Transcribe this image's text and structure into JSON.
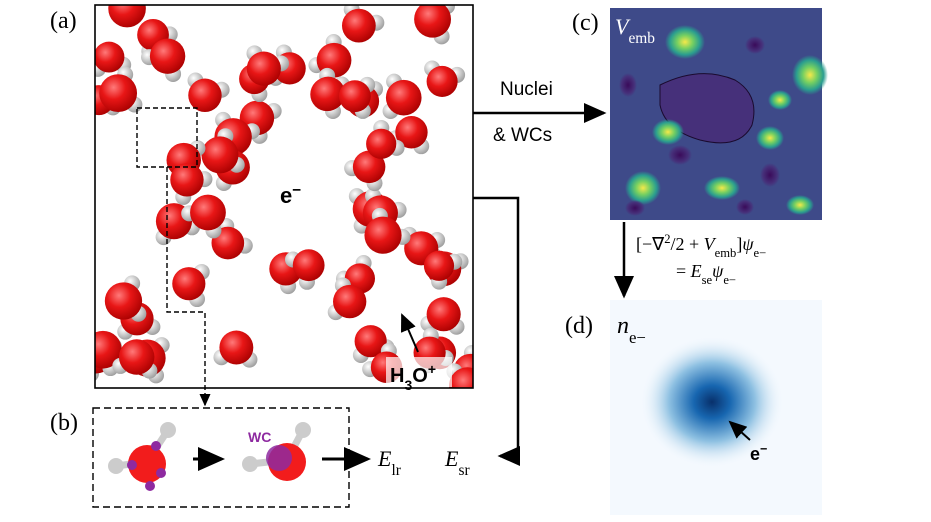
{
  "panels": {
    "a": {
      "label": "(a)",
      "electron": [
        {
          "t": "e"
        },
        {
          "t": "−",
          "s": "sup"
        }
      ],
      "ion": [
        {
          "t": "H"
        },
        {
          "t": "3",
          "s": "sub"
        },
        {
          "t": "O"
        },
        {
          "t": "+",
          "s": "sup"
        }
      ]
    },
    "b": {
      "label": "(b)",
      "wc": "WC",
      "energy": [
        {
          "t": "E",
          "s": "i"
        },
        {
          "t": "lr",
          "s": "sub"
        }
      ]
    },
    "c": {
      "label": "(c)",
      "quantity": [
        {
          "t": "V",
          "s": "i"
        },
        {
          "t": "emb",
          "s": "sub"
        }
      ]
    },
    "d": {
      "label": "(d)",
      "quantity": [
        {
          "t": "n",
          "s": "i"
        },
        {
          "t": "e−",
          "s": "sub"
        }
      ],
      "electron": [
        {
          "t": "e"
        },
        {
          "t": "−",
          "s": "sup"
        }
      ]
    }
  },
  "arrows": {
    "to_c": [
      "Nuclei",
      "& WCs"
    ],
    "short_range": [
      {
        "t": "E",
        "s": "i"
      },
      {
        "t": "sr",
        "s": "sub"
      }
    ]
  },
  "equation": [
    [
      {
        "t": "[−∇"
      },
      {
        "t": "2",
        "s": "sup"
      },
      {
        "t": "/2 + "
      },
      {
        "t": "V",
        "s": "i"
      },
      {
        "t": "emb",
        "s": "sub"
      },
      {
        "t": "]"
      },
      {
        "t": "ψ",
        "s": "i"
      },
      {
        "t": "e−",
        "s": "sub"
      }
    ],
    [
      {
        "t": "= "
      },
      {
        "t": "E",
        "s": "i"
      },
      {
        "t": "se",
        "s": "sub"
      },
      {
        "t": "ψ",
        "s": "i"
      },
      {
        "t": "e−",
        "s": "sub"
      }
    ]
  ]
}
